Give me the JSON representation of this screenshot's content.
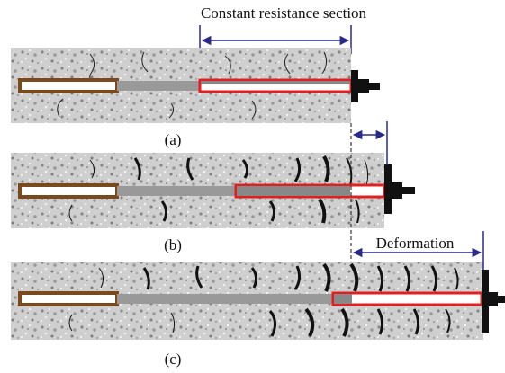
{
  "title": "Constant resistance section",
  "panels": [
    {
      "label": "(a)"
    },
    {
      "label": "(b)"
    },
    {
      "label": "(c)"
    }
  ],
  "deformation_label": "Deformation"
}
